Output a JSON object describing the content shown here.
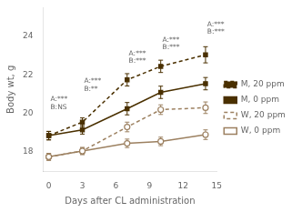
{
  "chart_data": {
    "type": "line",
    "xlabel": "Days after CL administration",
    "ylabel": "Body wt, g",
    "x": [
      0,
      3,
      7,
      10,
      14
    ],
    "series": [
      {
        "name": "M, 20 ppm",
        "color": "#4a3000",
        "marker": "square",
        "line_style": "dashed",
        "values": [
          18.85,
          19.55,
          21.75,
          22.45,
          23.05
        ],
        "errors": [
          0.22,
          0.22,
          0.32,
          0.32,
          0.42
        ]
      },
      {
        "name": "M, 0 ppm",
        "color": "#4a3000",
        "marker": "square",
        "line_style": "solid",
        "values": [
          18.85,
          19.15,
          20.25,
          21.1,
          21.55
        ],
        "errors": [
          0.22,
          0.22,
          0.32,
          0.32,
          0.32
        ]
      },
      {
        "name": "W, 20 ppm",
        "color": "#9c8060",
        "marker": "open-circle",
        "line_style": "dashed",
        "values": [
          17.75,
          18.05,
          19.3,
          20.2,
          20.3
        ],
        "errors": [
          0.18,
          0.18,
          0.25,
          0.25,
          0.3
        ]
      },
      {
        "name": "W, 0 ppm",
        "color": "#9c8060",
        "marker": "open-circle",
        "line_style": "solid",
        "values": [
          17.75,
          18.05,
          18.45,
          18.55,
          18.9
        ],
        "errors": [
          0.18,
          0.18,
          0.22,
          0.22,
          0.25
        ]
      }
    ],
    "annotations": [
      {
        "x": 0.15,
        "y": 20.15,
        "text": "A:***\nB:NS"
      },
      {
        "x": 3.15,
        "y": 21.1,
        "text": "A:***\nB:**"
      },
      {
        "x": 7.15,
        "y": 22.55,
        "text": "A:***\nB:***"
      },
      {
        "x": 10.15,
        "y": 23.25,
        "text": "A:***\nB:***"
      },
      {
        "x": 14.15,
        "y": 24.05,
        "text": "A:***\nB:***"
      }
    ],
    "xlim": [
      -0.5,
      15.0
    ],
    "xticks": [
      0,
      3,
      6,
      9,
      12,
      15
    ],
    "ylim": [
      17.0,
      25.5
    ],
    "yticks": [
      18,
      20,
      22,
      24
    ],
    "grid": false,
    "legend": "right"
  }
}
